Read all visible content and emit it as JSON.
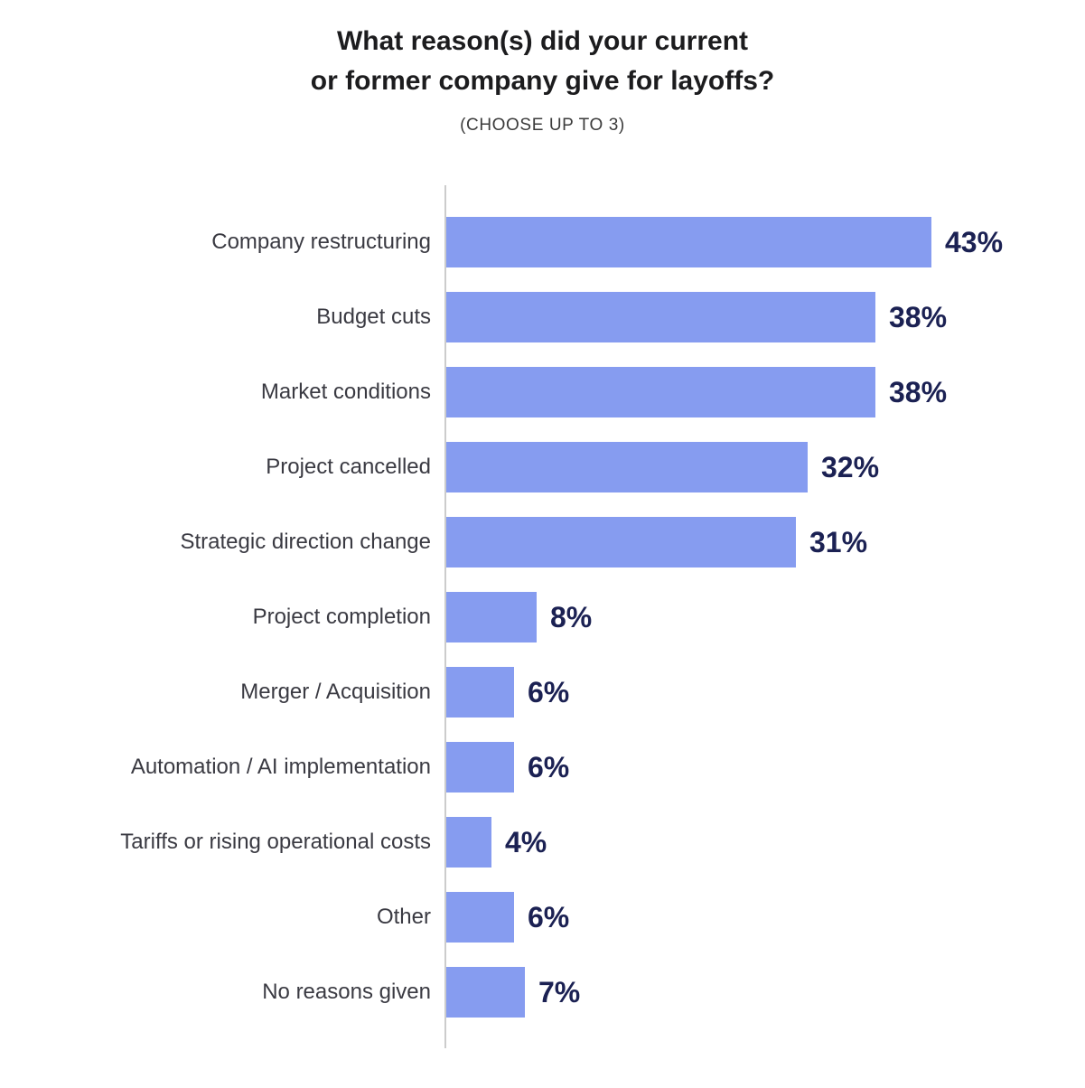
{
  "header": {
    "title_line1": "What reason(s) did your current",
    "title_line2": "or former company give for layoffs?",
    "subtitle": "(CHOOSE UP TO 3)"
  },
  "chart_data": {
    "type": "bar",
    "orientation": "horizontal",
    "title": "What reason(s) did your current or former company give for layoffs?",
    "subtitle": "(CHOOSE UP TO 3)",
    "categories": [
      "Company restructuring",
      "Budget cuts",
      "Market conditions",
      "Project cancelled",
      "Strategic direction change",
      "Project completion",
      "Merger / Acquisition",
      "Automation / AI implementation",
      "Tariffs or rising operational costs",
      "Other",
      "No reasons given"
    ],
    "values": [
      43,
      38,
      38,
      32,
      31,
      8,
      6,
      6,
      4,
      6,
      7
    ],
    "value_labels": [
      "43%",
      "38%",
      "38%",
      "32%",
      "31%",
      "8%",
      "6%",
      "6%",
      "4%",
      "6%",
      "7%"
    ],
    "unit": "%",
    "xlim": [
      0,
      48
    ],
    "grid": false,
    "legend": false,
    "bar_color": "#869CF0",
    "value_label_color": "#1B2153",
    "category_label_color": "#3A3A42",
    "axis_line_color": "#CCCCCC"
  }
}
